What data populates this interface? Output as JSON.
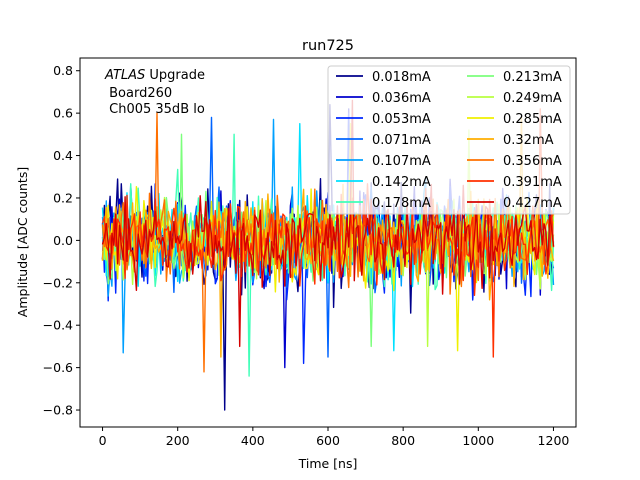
{
  "chart_data": {
    "type": "line",
    "title": "run725",
    "xlabel": "Time [ns]",
    "ylabel": "Amplitude [ADC counts]",
    "xlim": [
      -60,
      1260
    ],
    "ylim": [
      -0.88,
      0.86
    ],
    "xticks": [
      0,
      200,
      400,
      600,
      800,
      1000,
      1200
    ],
    "xtick_labels": [
      "0",
      "200",
      "400",
      "600",
      "800",
      "1000",
      "1200"
    ],
    "yticks": [
      0.8,
      0.6,
      0.4,
      0.2,
      0.0,
      -0.2,
      -0.4,
      -0.6,
      -0.8
    ],
    "ytick_labels": [
      "0.8",
      "0.6",
      "0.4",
      "0.2",
      "0.0",
      "−0.2",
      "−0.4",
      "−0.6",
      "−0.8"
    ],
    "grid": false,
    "legend_position": "upper-right",
    "legend_columns": 2,
    "annotation": {
      "atlas_label": "ATLAS",
      "atlas_suffix": " Upgrade",
      "line2": " Board260",
      "line3": " Ch005 35dB lo"
    },
    "x_range": [
      0,
      1200
    ],
    "sample_step_ns": 5,
    "series": [
      {
        "name": "0.018mA",
        "color": "#00008b",
        "amplitude_range": [
          -0.8,
          0.64
        ]
      },
      {
        "name": "0.036mA",
        "color": "#0000cd",
        "amplitude_range": [
          -0.6,
          0.62
        ]
      },
      {
        "name": "0.053mA",
        "color": "#0028ff",
        "amplitude_range": [
          -0.58,
          0.6
        ]
      },
      {
        "name": "0.071mA",
        "color": "#0064ff",
        "amplitude_range": [
          -0.55,
          0.58
        ]
      },
      {
        "name": "0.107mA",
        "color": "#00a0ff",
        "amplitude_range": [
          -0.53,
          0.57
        ]
      },
      {
        "name": "0.142mA",
        "color": "#00e0ff",
        "amplitude_range": [
          -0.52,
          0.55
        ]
      },
      {
        "name": "0.178mA",
        "color": "#40ffb8",
        "amplitude_range": [
          -0.64,
          0.5
        ]
      },
      {
        "name": "0.213mA",
        "color": "#7cff7c",
        "amplitude_range": [
          -0.5,
          0.5
        ]
      },
      {
        "name": "0.249mA",
        "color": "#b8ff40",
        "amplitude_range": [
          -0.5,
          0.52
        ]
      },
      {
        "name": "0.285mA",
        "color": "#f0f000",
        "amplitude_range": [
          -0.52,
          0.55
        ]
      },
      {
        "name": "0.32mA",
        "color": "#ffae00",
        "amplitude_range": [
          -0.55,
          0.58
        ]
      },
      {
        "name": "0.356mA",
        "color": "#ff7000",
        "amplitude_range": [
          -0.62,
          0.6
        ]
      },
      {
        "name": "0.391mA",
        "color": "#ff3000",
        "amplitude_range": [
          -0.55,
          0.62
        ]
      },
      {
        "name": "0.427mA",
        "color": "#d40000",
        "amplitude_range": [
          -0.5,
          0.66
        ]
      }
    ]
  }
}
